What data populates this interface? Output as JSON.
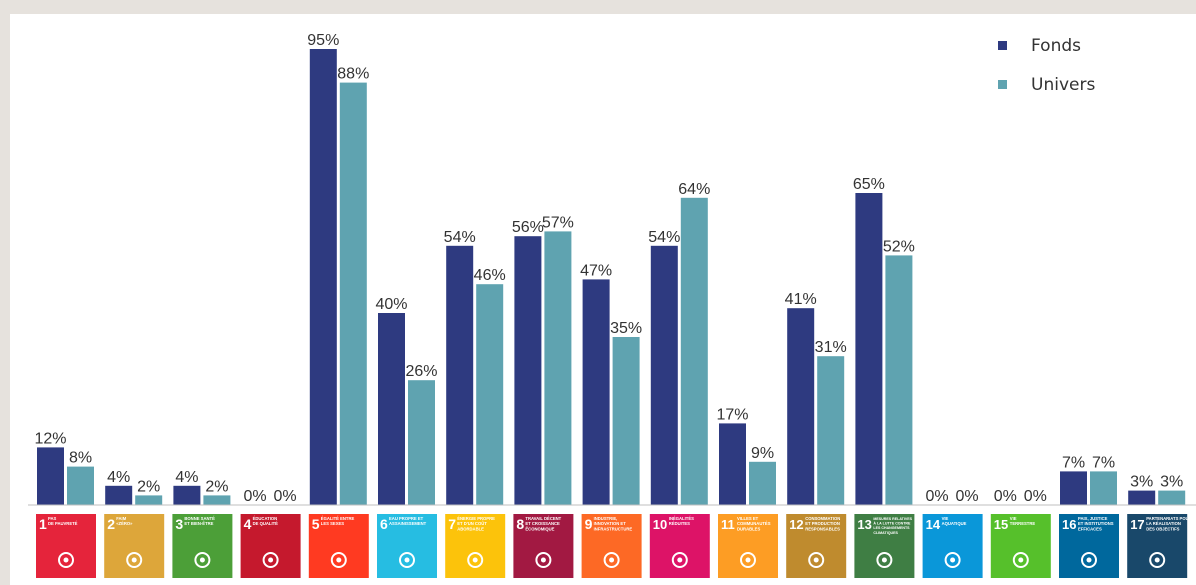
{
  "chart_data": {
    "type": "bar",
    "categories": [
      {
        "num": "1",
        "label_lines": [
          "PAS",
          "DE PAUVRETÉ"
        ],
        "color": "#e5243b",
        "icon": "family-icon"
      },
      {
        "num": "2",
        "label_lines": [
          "FAIM",
          "«ZÉRO»"
        ],
        "color": "#dda63a",
        "icon": "bowl-icon"
      },
      {
        "num": "3",
        "label_lines": [
          "BONNE SANTÉ",
          "ET BIEN-ÊTRE"
        ],
        "color": "#4c9f38",
        "icon": "heartbeat-icon"
      },
      {
        "num": "4",
        "label_lines": [
          "ÉDUCATION",
          "DE QUALITÉ"
        ],
        "color": "#c5192d",
        "icon": "book-icon"
      },
      {
        "num": "5",
        "label_lines": [
          "ÉGALITÉ ENTRE",
          "LES SEXES"
        ],
        "color": "#ff3a21",
        "icon": "gender-icon"
      },
      {
        "num": "6",
        "label_lines": [
          "EAU PROPRE ET",
          "ASSAINISSEMENT"
        ],
        "color": "#26bde2",
        "icon": "water-icon"
      },
      {
        "num": "7",
        "label_lines": [
          "ÉNERGIE PROPRE",
          "ET D'UN COÛT",
          "ABORDABLE"
        ],
        "color": "#fcc30b",
        "icon": "sun-icon"
      },
      {
        "num": "8",
        "label_lines": [
          "TRAVAIL DÉCENT",
          "ET CROISSANCE",
          "ÉCONOMIQUE"
        ],
        "color": "#a21942",
        "icon": "growth-chart-icon"
      },
      {
        "num": "9",
        "label_lines": [
          "INDUSTRIE,",
          "INNOVATION ET",
          "INFRASTRUCTURE"
        ],
        "color": "#fd6925",
        "icon": "cubes-icon"
      },
      {
        "num": "10",
        "label_lines": [
          "INÉGALITÉS",
          "RÉDUITES"
        ],
        "color": "#dd1367",
        "icon": "equality-icon"
      },
      {
        "num": "11",
        "label_lines": [
          "VILLES ET",
          "COMMUNAUTÉS",
          "DURABLES"
        ],
        "color": "#fd9d24",
        "icon": "city-icon"
      },
      {
        "num": "12",
        "label_lines": [
          "CONSOMMATION",
          "ET PRODUCTION",
          "RESPONSABLES"
        ],
        "color": "#bf8b2e",
        "icon": "infinity-icon"
      },
      {
        "num": "13",
        "label_lines": [
          "MESURES RELATIVES",
          "À LA LUTTE CONTRE",
          "LES CHANGEMENTS",
          "CLIMATIQUES"
        ],
        "color": "#3f7e44",
        "icon": "eye-globe-icon"
      },
      {
        "num": "14",
        "label_lines": [
          "VIE",
          "AQUATIQUE"
        ],
        "color": "#0a97d9",
        "icon": "fish-icon"
      },
      {
        "num": "15",
        "label_lines": [
          "VIE",
          "TERRESTRE"
        ],
        "color": "#56c02b",
        "icon": "tree-icon"
      },
      {
        "num": "16",
        "label_lines": [
          "PAIX, JUSTICE",
          "ET INSTITUTIONS",
          "EFFICACES"
        ],
        "color": "#00689d",
        "icon": "dove-icon"
      },
      {
        "num": "17",
        "label_lines": [
          "PARTENARIATS POUR",
          "LA RÉALISATION",
          "DES OBJECTIFS"
        ],
        "color": "#19486a",
        "icon": "flower-icon"
      }
    ],
    "series": [
      {
        "name": "Fonds",
        "color": "#2e3a80",
        "values": [
          12,
          4,
          4,
          0,
          95,
          40,
          54,
          56,
          47,
          54,
          17,
          41,
          65,
          0,
          0,
          7,
          3
        ]
      },
      {
        "name": "Univers",
        "color": "#5fa3b0",
        "values": [
          8,
          2,
          2,
          0,
          88,
          26,
          46,
          57,
          35,
          64,
          9,
          31,
          52,
          0,
          0,
          7,
          3
        ]
      }
    ],
    "value_suffix": "%",
    "ylim": [
      0,
      100
    ],
    "grid": false,
    "legend_position": "top-right"
  }
}
